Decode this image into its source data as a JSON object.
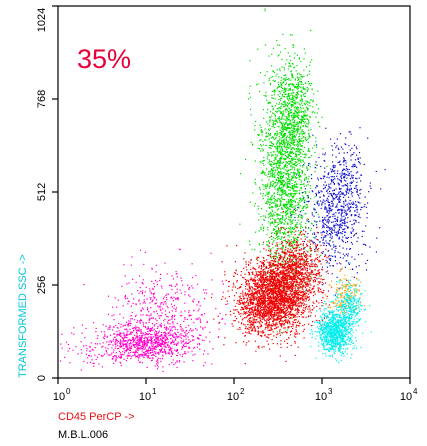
{
  "chart_data": {
    "type": "scatter",
    "title": "",
    "annotation": "35%",
    "xlabel": "CD45 PerCP ->",
    "ylabel": "TRANSFORMED SSC ->",
    "footer": "M.B.L.006",
    "x_scale": "log",
    "xlim": [
      1,
      10000
    ],
    "ylim": [
      0,
      1024
    ],
    "x_ticks": [
      {
        "base": "10",
        "exp": "0"
      },
      {
        "base": "10",
        "exp": "1"
      },
      {
        "base": "10",
        "exp": "2"
      },
      {
        "base": "10",
        "exp": "3"
      },
      {
        "base": "10",
        "exp": "4"
      }
    ],
    "y_ticks": [
      "0",
      "256",
      "512",
      "768",
      "1024"
    ],
    "y_tick_values": [
      0,
      256,
      512,
      768,
      1024
    ],
    "grid": false,
    "colors": {
      "annotation": "#e8003a",
      "xlabel": "#e81010",
      "ylabel": "#00c8d8",
      "axis": "#000000"
    },
    "populations": [
      {
        "color": "#ff00cc",
        "clusters": [
          {
            "x": 10,
            "y": 100,
            "sx": 0.28,
            "sy": 28,
            "n": 900
          },
          {
            "x": 17,
            "y": 200,
            "sx": 0.3,
            "sy": 55,
            "n": 350
          },
          {
            "x": 4,
            "y": 80,
            "sx": 0.35,
            "sy": 25,
            "n": 120
          }
        ]
      },
      {
        "color": "#00dd00",
        "clusters": [
          {
            "x": 380,
            "y": 560,
            "sx": 0.15,
            "sy": 140,
            "n": 1900
          },
          {
            "x": 500,
            "y": 740,
            "sx": 0.1,
            "sy": 70,
            "n": 450
          }
        ]
      },
      {
        "color": "#1010cc",
        "clusters": [
          {
            "x": 1400,
            "y": 450,
            "sx": 0.17,
            "sy": 75,
            "n": 650
          },
          {
            "x": 1800,
            "y": 560,
            "sx": 0.12,
            "sy": 60,
            "n": 180
          }
        ]
      },
      {
        "color": "#ee0000",
        "clusters": [
          {
            "x": 300,
            "y": 230,
            "sx": 0.2,
            "sy": 50,
            "n": 2200
          },
          {
            "x": 500,
            "y": 310,
            "sx": 0.16,
            "sy": 45,
            "n": 700
          },
          {
            "x": 200,
            "y": 180,
            "sx": 0.15,
            "sy": 40,
            "n": 400
          }
        ]
      },
      {
        "color": "#ffa500",
        "clusters": [
          {
            "x": 1800,
            "y": 230,
            "sx": 0.09,
            "sy": 30,
            "n": 160
          }
        ]
      },
      {
        "color": "#00eeee",
        "clusters": [
          {
            "x": 1400,
            "y": 130,
            "sx": 0.1,
            "sy": 30,
            "n": 900
          },
          {
            "x": 2000,
            "y": 200,
            "sx": 0.09,
            "sy": 30,
            "n": 250
          }
        ]
      }
    ]
  }
}
